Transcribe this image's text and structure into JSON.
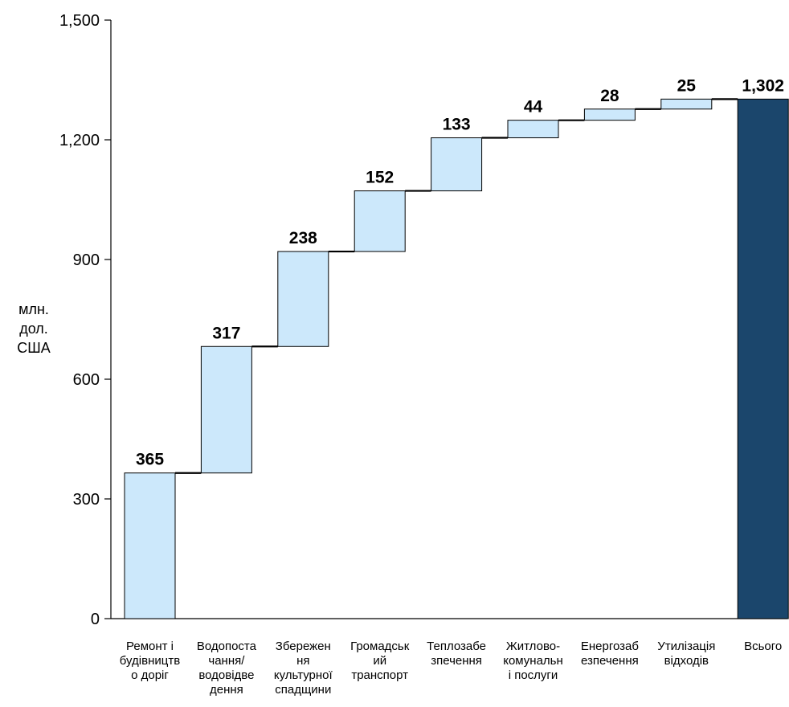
{
  "chart_data": {
    "type": "bar",
    "subtype": "waterfall",
    "title": "",
    "xlabel": "",
    "ylabel": [
      "млн.",
      "дол.",
      "США"
    ],
    "ylim": [
      0,
      1500
    ],
    "yticks": [
      0,
      300,
      600,
      900,
      1200,
      1500
    ],
    "ytick_labels": [
      "0",
      "300",
      "600",
      "900",
      "1,200",
      "1,500"
    ],
    "grid": false,
    "legend": "none",
    "categories": [
      [
        "Ремонт і",
        "будівництв",
        "о доріг"
      ],
      [
        "Водопоста",
        "чання/",
        "водовідве",
        "дення"
      ],
      [
        "Збережен",
        "ня",
        "культурної",
        "спадщини"
      ],
      [
        "Громадськ",
        "ий",
        "транспорт"
      ],
      [
        "Теплозабе",
        "зпечення"
      ],
      [
        "Житлово-",
        "комунальн",
        "і послуги"
      ],
      [
        "Енергозаб",
        "езпечення"
      ],
      [
        "Утилізація",
        "відходів"
      ],
      [
        "Всього"
      ]
    ],
    "values": [
      365,
      317,
      238,
      152,
      133,
      44,
      28,
      25,
      1302
    ],
    "value_labels": [
      "365",
      "317",
      "238",
      "152",
      "133",
      "44",
      "28",
      "25",
      "1,302"
    ],
    "is_total": [
      false,
      false,
      false,
      false,
      false,
      false,
      false,
      false,
      true
    ],
    "colors": {
      "increment_fill": "#cce8fb",
      "total_fill": "#1b466c",
      "stroke": "#000000",
      "axis": "#000000"
    }
  }
}
